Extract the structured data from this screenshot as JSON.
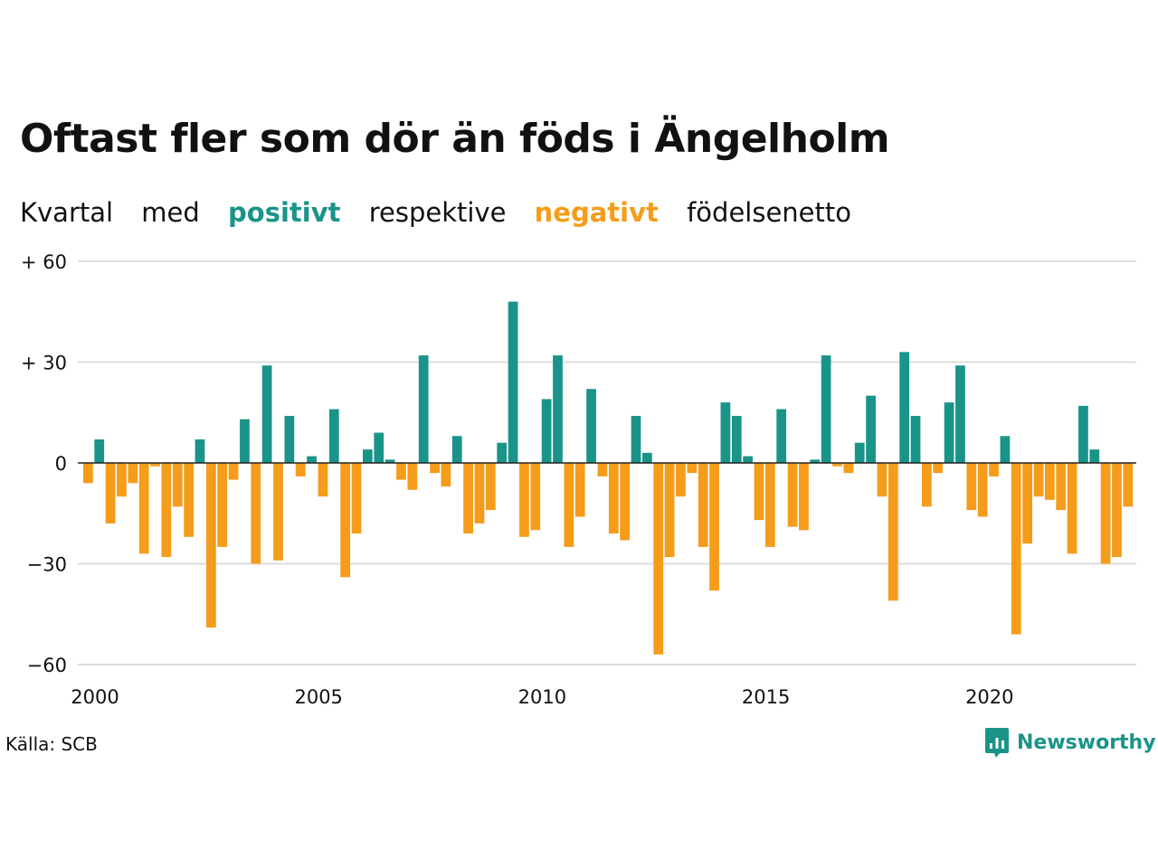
{
  "title": "Oftast fler som dör än föds i Ängelholm",
  "subtitle": {
    "part1": "Kvartal",
    "part2": "med",
    "positive_word": "positivt",
    "part3": "respektive",
    "negative_word": "negativt",
    "part4": "födelsenetto"
  },
  "source": "Källa: SCB",
  "brand": {
    "name": "Newsworthy",
    "icon": "newsworthy-logo-icon"
  },
  "colors": {
    "positive": "#1a9488",
    "negative": "#f59c1a",
    "grid": "#dddddd",
    "text": "#111111"
  },
  "chart_data": {
    "type": "bar",
    "title": "Oftast fler som dör än föds i Ängelholm",
    "xlabel": "",
    "ylabel": "",
    "ylim": [
      -60,
      60
    ],
    "yticks": [
      {
        "value": 60,
        "label": "+ 60"
      },
      {
        "value": 30,
        "label": "+ 30"
      },
      {
        "value": 0,
        "label": "0"
      },
      {
        "value": -30,
        "label": "−30"
      },
      {
        "value": -60,
        "label": "−60"
      }
    ],
    "xticks": [
      {
        "value": 2000,
        "label": "2000"
      },
      {
        "value": 2005,
        "label": "2005"
      },
      {
        "value": 2010,
        "label": "2010"
      },
      {
        "value": 2015,
        "label": "2015"
      },
      {
        "value": 2020,
        "label": "2020"
      }
    ],
    "x_start": "2000-Q1",
    "x_end": "2023-Q2",
    "grid": true,
    "values": [
      -6,
      7,
      -18,
      -10,
      -6,
      -27,
      -1,
      -28,
      -13,
      -22,
      7,
      -49,
      -25,
      -5,
      13,
      -30,
      29,
      -29,
      14,
      -4,
      2,
      -10,
      16,
      -34,
      -21,
      4,
      9,
      1,
      -5,
      -8,
      32,
      -3,
      -7,
      8,
      -21,
      -18,
      -14,
      6,
      48,
      -22,
      -20,
      19,
      32,
      -25,
      -16,
      22,
      -4,
      -21,
      -23,
      14,
      3,
      -57,
      -28,
      -10,
      -3,
      -25,
      -38,
      18,
      14,
      2,
      -17,
      -25,
      16,
      -19,
      -20,
      1,
      32,
      -1,
      -3,
      6,
      20,
      -10,
      -41,
      33,
      14,
      -13,
      -3,
      18,
      29,
      -14,
      -16,
      -4,
      8,
      -51,
      -24,
      -10,
      -11,
      -14,
      -27,
      17,
      4,
      -30,
      -28,
      -13
    ]
  }
}
